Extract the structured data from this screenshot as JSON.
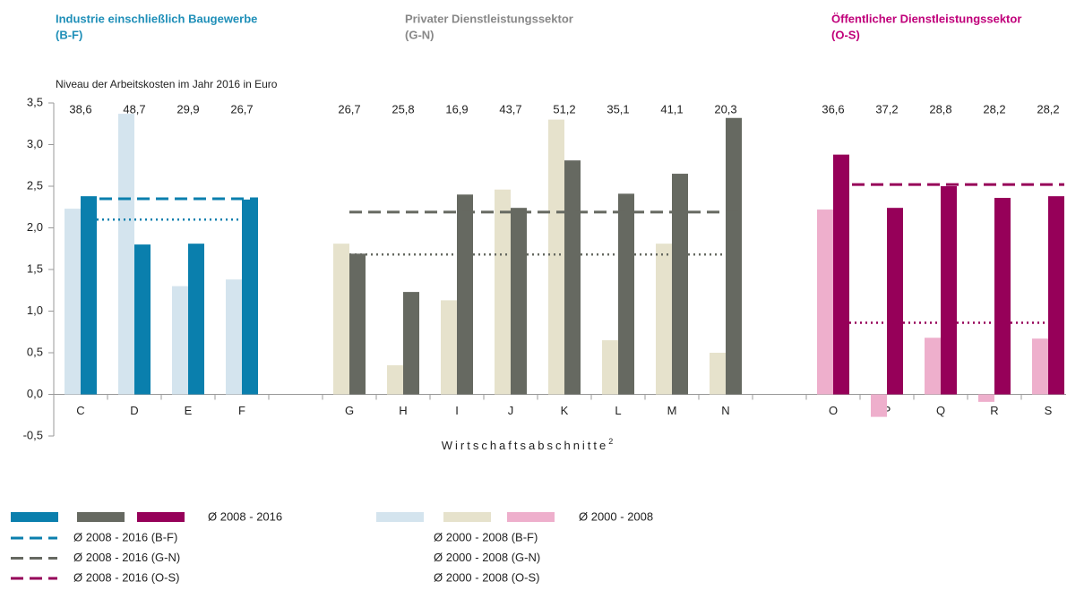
{
  "chart_data": {
    "type": "bar",
    "subtitle": "Niveau der Arbeitskosten im Jahr 2016 in Euro",
    "xlabel": "Wirtschaftsabschnitte",
    "xlabel_note": "2",
    "ylim": [
      -0.5,
      3.5
    ],
    "yticks": [
      {
        "value": -0.5,
        "label": "-0,5"
      },
      {
        "value": 0,
        "label": "0,0"
      },
      {
        "value": 0.5,
        "label": "0,5"
      },
      {
        "value": 1,
        "label": "1,0"
      },
      {
        "value": 1.5,
        "label": "1,5"
      },
      {
        "value": 2,
        "label": "2,0"
      },
      {
        "value": 2.5,
        "label": "2,5"
      },
      {
        "value": 3,
        "label": "3,0"
      },
      {
        "value": 3.5,
        "label": "3,5"
      }
    ],
    "bar_label_new": "Ø 2008 - 2016",
    "bar_label_old": "Ø 2000 - 2008",
    "groups": [
      {
        "title": "Industrie einschließlich  Baugewerbe",
        "code": "(B-F)",
        "title_color": "#1f8fb8",
        "color_new": "#0a7fad",
        "color_old": "#d4e4ee",
        "categories": [
          "C",
          "D",
          "E",
          "F"
        ],
        "levels": [
          "38,6",
          "48,7",
          "29,9",
          "26,7"
        ],
        "values_old": [
          2.23,
          3.37,
          1.3,
          1.38
        ],
        "values_new": [
          2.38,
          1.8,
          1.81,
          2.34
        ],
        "avg_new": 2.35,
        "avg_old": 2.1,
        "avg_new_label": "Ø 2008 - 2016 (B-F)",
        "avg_old_label": "Ø 2000 - 2008 (B-F)"
      },
      {
        "title": "Privater Dienstleistungssektor",
        "code": "(G-N)",
        "title_color": "#888888",
        "color_new": "#666961",
        "color_old": "#e6e2cc",
        "categories": [
          "G",
          "H",
          "I",
          "J",
          "K",
          "L",
          "M",
          "N"
        ],
        "levels": [
          "26,7",
          "25,8",
          "16,9",
          "43,7",
          "51,2",
          "35,1",
          "41,1",
          "20,3"
        ],
        "values_old": [
          1.81,
          0.35,
          1.13,
          2.46,
          3.3,
          0.65,
          1.81,
          0.5
        ],
        "values_new": [
          1.69,
          1.23,
          2.4,
          2.24,
          2.81,
          2.41,
          2.65,
          3.32
        ],
        "avg_new": 2.19,
        "avg_old": 1.68,
        "avg_new_label": "Ø 2008 - 2016 (G-N)",
        "avg_old_label": "Ø 2000 - 2008 (G-N)"
      },
      {
        "title": "Öffentlicher Dienstleistungssektor",
        "code": "(O-S)",
        "title_color": "#c0007a",
        "color_new": "#960059",
        "color_old": "#eeafcc",
        "categories": [
          "O",
          "P",
          "Q",
          "R",
          "S"
        ],
        "levels": [
          "36,6",
          "37,2",
          "28,8",
          "28,2",
          "28,2"
        ],
        "values_old": [
          2.22,
          -0.27,
          0.68,
          -0.09,
          0.67
        ],
        "values_new": [
          2.88,
          2.24,
          2.5,
          2.36,
          2.38
        ],
        "avg_new": 2.52,
        "avg_old": 0.86,
        "avg_new_label": "Ø 2008 - 2016 (O-S)",
        "avg_old_label": "Ø 2000 - 2008 (O-S)"
      }
    ]
  }
}
